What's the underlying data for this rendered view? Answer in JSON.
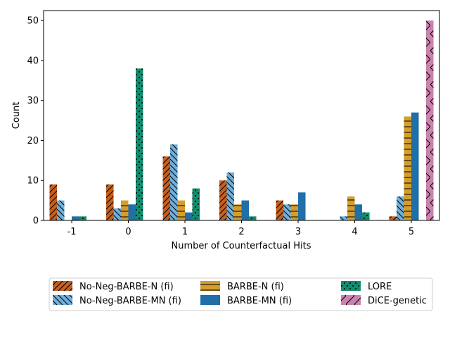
{
  "chart_data": {
    "type": "bar",
    "xlabel": "Number of Counterfactual Hits",
    "ylabel": "Count",
    "categories": [
      "-1",
      "0",
      "1",
      "2",
      "3",
      "4",
      "5"
    ],
    "ylim": [
      0,
      52.5
    ],
    "yticks": [
      0,
      10,
      20,
      30,
      40,
      50
    ],
    "grid": false,
    "legend_position": "bottom-center",
    "series": [
      {
        "name": "No-Neg-BARBE-N (fi)",
        "color": "#c65f1e",
        "hatch": "diagonal-forward",
        "values": [
          9,
          9,
          16,
          10,
          5,
          0,
          1
        ]
      },
      {
        "name": "No-Neg-BARBE-MN (fi)",
        "color": "#6fafdc",
        "hatch": "diagonal-back",
        "values": [
          5,
          3,
          19,
          12,
          4,
          1,
          6
        ]
      },
      {
        "name": "BARBE-N (fi)",
        "color": "#d49e2c",
        "hatch": "horizontal",
        "values": [
          0,
          5,
          5,
          4,
          4,
          6,
          26
        ]
      },
      {
        "name": "BARBE-MN (fi)",
        "color": "#1f6fa8",
        "hatch": "none",
        "values": [
          1,
          4,
          2,
          5,
          7,
          4,
          27
        ]
      },
      {
        "name": "LORE",
        "color": "#128b6e",
        "hatch": "dots",
        "values": [
          1,
          38,
          8,
          1,
          0,
          2,
          0
        ]
      },
      {
        "name": "DiCE-genetic",
        "color": "#c983ad",
        "hatch": "cross",
        "values": [
          0,
          0,
          0,
          0,
          0,
          0,
          50
        ]
      }
    ]
  }
}
